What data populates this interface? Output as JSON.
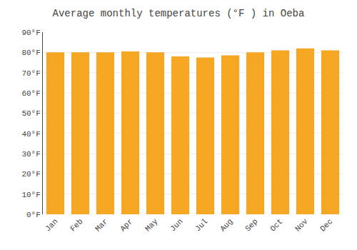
{
  "chart_data": {
    "type": "bar",
    "title": "Average monthly temperatures (°F ) in Oeba",
    "categories": [
      "Jan",
      "Feb",
      "Mar",
      "Apr",
      "May",
      "Jun",
      "Jul",
      "Aug",
      "Sep",
      "Oct",
      "Nov",
      "Dec"
    ],
    "values": [
      80,
      80,
      80,
      80.5,
      80,
      78,
      77.5,
      78.5,
      80,
      81,
      82,
      81
    ],
    "color": "#F5A623",
    "ylim": [
      0,
      90
    ],
    "yticks": [
      {
        "value": 0,
        "label": "0°F"
      },
      {
        "value": 10,
        "label": "10°F"
      },
      {
        "value": 20,
        "label": "20°F"
      },
      {
        "value": 30,
        "label": "30°F"
      },
      {
        "value": 40,
        "label": "40°F"
      },
      {
        "value": 50,
        "label": "50°F"
      },
      {
        "value": 60,
        "label": "60°F"
      },
      {
        "value": 70,
        "label": "70°F"
      },
      {
        "value": 80,
        "label": "80°F"
      },
      {
        "value": 90,
        "label": "90°F"
      }
    ],
    "grid": true
  }
}
